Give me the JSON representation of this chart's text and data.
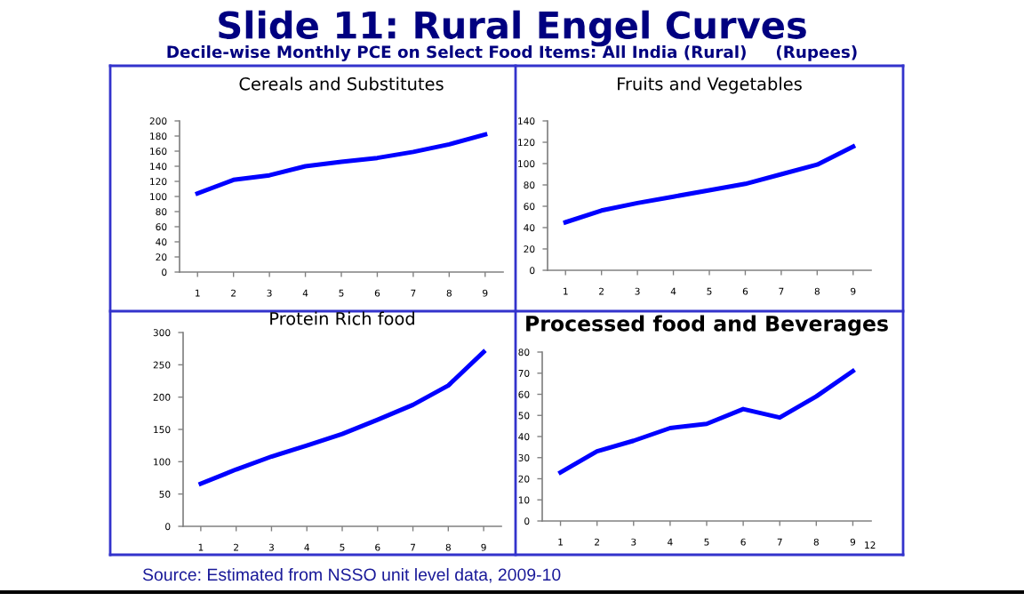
{
  "chart_data": [
    {
      "type": "line",
      "title": "Cereals and Substitutes",
      "categories": [
        "1",
        "2",
        "3",
        "4",
        "5",
        "6",
        "7",
        "8",
        "9"
      ],
      "series": [
        {
          "color": "#0000ff",
          "values": [
            104,
            122,
            128,
            140,
            146,
            151,
            159,
            169,
            182
          ]
        }
      ],
      "ylim": [
        0,
        200
      ],
      "yticks": [
        0,
        20,
        40,
        60,
        80,
        100,
        120,
        140,
        160,
        180,
        200
      ],
      "marker": "none",
      "line_style": "solid",
      "annotations": [
        "Slide 11: Rural Engel Curves",
        "Decile-wise Monthly PCE on Select Food Items: All India (Rural)     (Rupees)",
        "Source: Estimated from NSSO unit level data, 2009-10"
      ]
    },
    {
      "type": "line",
      "title": "Fruits and Vegetables",
      "categories": [
        "1",
        "2",
        "3",
        "4",
        "5",
        "6",
        "7",
        "8",
        "9"
      ],
      "series": [
        {
          "color": "#0000ff",
          "values": [
            45,
            56,
            63,
            69,
            75,
            81,
            90,
            99,
            116
          ]
        }
      ],
      "ylim": [
        0,
        140
      ],
      "yticks": [
        0,
        20,
        40,
        60,
        80,
        100,
        120,
        140
      ],
      "marker": "none",
      "line_style": "solid"
    },
    {
      "type": "line",
      "title": "Protein Rich food",
      "categories": [
        "1",
        "2",
        "3",
        "4",
        "5",
        "6",
        "7",
        "8",
        "9"
      ],
      "series": [
        {
          "color": "#0000ff",
          "values": [
            66,
            88,
            108,
            125,
            143,
            165,
            188,
            218,
            270
          ]
        }
      ],
      "ylim": [
        0,
        300
      ],
      "yticks": [
        0,
        50,
        100,
        150,
        200,
        250,
        300
      ],
      "marker": "none",
      "line_style": "solid"
    },
    {
      "type": "line",
      "title": "Processed food and Beverages",
      "categories": [
        "1",
        "2",
        "3",
        "4",
        "5",
        "6",
        "7",
        "8",
        "9"
      ],
      "series": [
        {
          "color": "#0000ff",
          "values": [
            23,
            33,
            38,
            44,
            46,
            53,
            49,
            59,
            71
          ]
        }
      ],
      "ylim": [
        0,
        80
      ],
      "yticks": [
        0,
        10,
        20,
        30,
        40,
        50,
        60,
        70,
        80
      ],
      "marker": "none",
      "line_style": "solid",
      "annotations": [
        "12"
      ]
    }
  ]
}
